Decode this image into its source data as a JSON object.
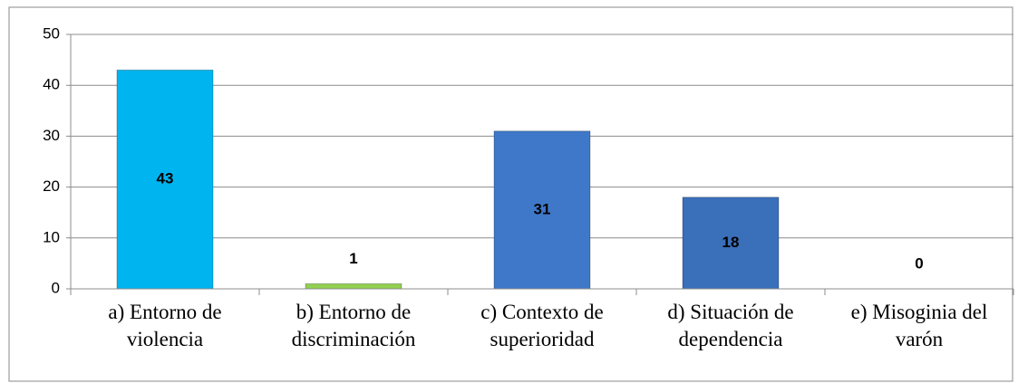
{
  "chart_data": {
    "type": "bar",
    "categories": [
      "a) Entorno de violencia",
      "b) Entorno de discriminación",
      "c) Contexto de superioridad",
      "d) Situación de dependencia",
      "e) Misoginia del varón"
    ],
    "values": [
      43,
      1,
      31,
      18,
      0
    ],
    "colors": [
      "#00b4ef",
      "#92d050",
      "#3f78c8",
      "#3a6fba",
      "#3a6fba"
    ],
    "ylim": [
      0,
      50
    ],
    "yticks": [
      0,
      10,
      20,
      30,
      40,
      50
    ],
    "grid": true
  }
}
